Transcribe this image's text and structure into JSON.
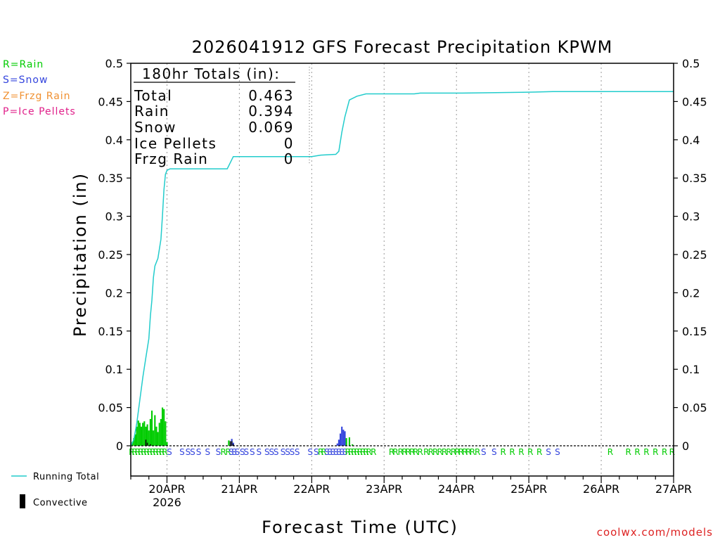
{
  "chart_data": {
    "type": "bar",
    "title": "2026041912 GFS Forecast Precipitation KPWM",
    "xlabel": "Forecast Time (UTC)",
    "ylabel": "Precipitation (in)",
    "ylim": [
      0,
      0.5
    ],
    "xlim_hours": [
      0,
      180
    ],
    "grid": "vertical dotted at day boundaries",
    "y_ticks": [
      "0",
      "0.05",
      "0.1",
      "0.15",
      "0.2",
      "0.25",
      "0.3",
      "0.35",
      "0.4",
      "0.45",
      "0.5"
    ],
    "x_ticks": [
      {
        "hour": 12,
        "label": "20APR",
        "sub": "2026"
      },
      {
        "hour": 36,
        "label": "21APR",
        "sub": ""
      },
      {
        "hour": 60,
        "label": "22APR",
        "sub": ""
      },
      {
        "hour": 84,
        "label": "23APR",
        "sub": ""
      },
      {
        "hour": 108,
        "label": "24APR",
        "sub": ""
      },
      {
        "hour": 132,
        "label": "25APR",
        "sub": ""
      },
      {
        "hour": 156,
        "label": "26APR",
        "sub": ""
      },
      {
        "hour": 180,
        "label": "27APR",
        "sub": ""
      }
    ],
    "legend": {
      "rain": "R=Rain",
      "snow": "S=Snow",
      "frzg_rain": "Z=Frzg Rain",
      "ice_pellets": "P=Ice Pellets",
      "running_total": "Running Total",
      "convective": "Convective"
    },
    "totals": {
      "header": "180hr Totals (in):",
      "rows": [
        {
          "label": "Total",
          "value": "0.463"
        },
        {
          "label": "Rain",
          "value": "0.394"
        },
        {
          "label": "Snow",
          "value": "0.069"
        },
        {
          "label": "Ice Pellets",
          "value": "0"
        },
        {
          "label": "Frzg Rain",
          "value": "0"
        }
      ]
    },
    "colors": {
      "rain": "#00cc00",
      "snow": "#3344dd",
      "frzg_rain": "#f09030",
      "ice_pellets": "#e0208a",
      "running_total": "#22cccc",
      "convective": "#000000"
    },
    "bars": [
      {
        "hour": 0.5,
        "value": 0.005,
        "type": "rain"
      },
      {
        "hour": 1,
        "value": 0.01,
        "type": "rain"
      },
      {
        "hour": 1.5,
        "value": 0.015,
        "type": "rain"
      },
      {
        "hour": 2,
        "value": 0.025,
        "type": "rain"
      },
      {
        "hour": 2.5,
        "value": 0.033,
        "type": "rain"
      },
      {
        "hour": 3,
        "value": 0.03,
        "type": "rain"
      },
      {
        "hour": 3.5,
        "value": 0.025,
        "type": "rain"
      },
      {
        "hour": 4,
        "value": 0.03,
        "type": "rain"
      },
      {
        "hour": 4.5,
        "value": 0.032,
        "type": "rain"
      },
      {
        "hour": 5,
        "value": 0.025,
        "type": "rain"
      },
      {
        "hour": 5.5,
        "value": 0.028,
        "type": "rain"
      },
      {
        "hour": 6,
        "value": 0.02,
        "type": "rain"
      },
      {
        "hour": 6.5,
        "value": 0.035,
        "type": "rain"
      },
      {
        "hour": 7,
        "value": 0.046,
        "type": "rain"
      },
      {
        "hour": 7.5,
        "value": 0.02,
        "type": "rain"
      },
      {
        "hour": 8,
        "value": 0.04,
        "type": "rain"
      },
      {
        "hour": 8.5,
        "value": 0.025,
        "type": "rain"
      },
      {
        "hour": 9,
        "value": 0.018,
        "type": "rain"
      },
      {
        "hour": 9.5,
        "value": 0.03,
        "type": "rain"
      },
      {
        "hour": 10,
        "value": 0.035,
        "type": "rain"
      },
      {
        "hour": 10.5,
        "value": 0.05,
        "type": "rain"
      },
      {
        "hour": 11,
        "value": 0.048,
        "type": "rain"
      },
      {
        "hour": 11.5,
        "value": 0.032,
        "type": "rain"
      },
      {
        "hour": 12,
        "value": 0.005,
        "type": "rain"
      },
      {
        "hour": 32.5,
        "value": 0.007,
        "type": "rain"
      },
      {
        "hour": 33.5,
        "value": 0.009,
        "type": "snow"
      },
      {
        "hour": 34,
        "value": 0.004,
        "type": "snow"
      },
      {
        "hour": 54,
        "value": 0.001,
        "type": "snow"
      },
      {
        "hour": 68.5,
        "value": 0.003,
        "type": "snow"
      },
      {
        "hour": 69,
        "value": 0.008,
        "type": "snow"
      },
      {
        "hour": 69.5,
        "value": 0.016,
        "type": "snow"
      },
      {
        "hour": 70,
        "value": 0.025,
        "type": "snow"
      },
      {
        "hour": 70.5,
        "value": 0.021,
        "type": "snow"
      },
      {
        "hour": 71,
        "value": 0.019,
        "type": "snow"
      },
      {
        "hour": 71.5,
        "value": 0.01,
        "type": "rain"
      },
      {
        "hour": 72.5,
        "value": 0.011,
        "type": "rain"
      },
      {
        "hour": 73.5,
        "value": 0.002,
        "type": "rain"
      }
    ],
    "convective": [
      {
        "hour": 5,
        "value": 0.008
      },
      {
        "hour": 5.5,
        "value": 0.004
      },
      {
        "hour": 6.5,
        "value": 0.002
      },
      {
        "hour": 33,
        "value": 0.006
      },
      {
        "hour": 33.5,
        "value": 0.006
      },
      {
        "hour": 34,
        "value": 0.002
      }
    ],
    "running_total": [
      [
        0,
        0
      ],
      [
        1,
        0.008
      ],
      [
        2,
        0.03
      ],
      [
        3,
        0.06
      ],
      [
        4,
        0.09
      ],
      [
        5,
        0.115
      ],
      [
        6,
        0.14
      ],
      [
        6.5,
        0.17
      ],
      [
        7,
        0.19
      ],
      [
        7.5,
        0.22
      ],
      [
        8,
        0.235
      ],
      [
        9,
        0.245
      ],
      [
        10,
        0.27
      ],
      [
        10.5,
        0.3
      ],
      [
        11,
        0.335
      ],
      [
        11.5,
        0.355
      ],
      [
        12,
        0.36
      ],
      [
        13,
        0.362
      ],
      [
        20,
        0.362
      ],
      [
        32,
        0.362
      ],
      [
        34,
        0.378
      ],
      [
        54,
        0.378
      ],
      [
        60,
        0.378
      ],
      [
        63,
        0.38
      ],
      [
        68,
        0.381
      ],
      [
        69,
        0.385
      ],
      [
        70,
        0.41
      ],
      [
        71,
        0.43
      ],
      [
        72.5,
        0.452
      ],
      [
        75,
        0.457
      ],
      [
        78,
        0.46
      ],
      [
        90,
        0.46
      ],
      [
        94,
        0.46
      ],
      [
        96,
        0.461
      ],
      [
        110,
        0.461
      ],
      [
        130,
        0.462
      ],
      [
        140,
        0.463
      ],
      [
        180,
        0.463
      ]
    ],
    "type_labels": [
      {
        "hour": 0.3,
        "text": "R",
        "type": "rain"
      },
      {
        "hour": 1.3,
        "text": "R",
        "type": "rain"
      },
      {
        "hour": 2.3,
        "text": "R",
        "type": "rain"
      },
      {
        "hour": 3.3,
        "text": "R",
        "type": "rain"
      },
      {
        "hour": 4.3,
        "text": "R",
        "type": "rain"
      },
      {
        "hour": 5.3,
        "text": "R",
        "type": "rain"
      },
      {
        "hour": 6.3,
        "text": "R",
        "type": "rain"
      },
      {
        "hour": 7.3,
        "text": "R",
        "type": "rain"
      },
      {
        "hour": 8.3,
        "text": "R",
        "type": "rain"
      },
      {
        "hour": 9.3,
        "text": "R",
        "type": "rain"
      },
      {
        "hour": 10.3,
        "text": "R",
        "type": "rain"
      },
      {
        "hour": 11.3,
        "text": "R",
        "type": "rain"
      },
      {
        "hour": 12.8,
        "text": "S",
        "type": "snow"
      },
      {
        "hour": 17,
        "text": "S",
        "type": "snow"
      },
      {
        "hour": 19,
        "text": "S",
        "type": "snow"
      },
      {
        "hour": 20.5,
        "text": "S",
        "type": "snow"
      },
      {
        "hour": 22.5,
        "text": "S",
        "type": "snow"
      },
      {
        "hour": 25.5,
        "text": "S",
        "type": "snow"
      },
      {
        "hour": 29,
        "text": "S",
        "type": "snow"
      },
      {
        "hour": 30.7,
        "text": "R",
        "type": "rain"
      },
      {
        "hour": 32.3,
        "text": "R",
        "type": "rain"
      },
      {
        "hour": 33.3,
        "text": "S",
        "type": "snow"
      },
      {
        "hour": 34.3,
        "text": "S",
        "type": "snow"
      },
      {
        "hour": 35.3,
        "text": "S",
        "type": "snow"
      },
      {
        "hour": 37,
        "text": "S",
        "type": "snow"
      },
      {
        "hour": 38.3,
        "text": "S",
        "type": "snow"
      },
      {
        "hour": 40.3,
        "text": "S",
        "type": "snow"
      },
      {
        "hour": 42.5,
        "text": "S",
        "type": "snow"
      },
      {
        "hour": 45.2,
        "text": "S",
        "type": "snow"
      },
      {
        "hour": 46.7,
        "text": "S",
        "type": "snow"
      },
      {
        "hour": 48.2,
        "text": "S",
        "type": "snow"
      },
      {
        "hour": 50.5,
        "text": "S",
        "type": "snow"
      },
      {
        "hour": 52,
        "text": "S",
        "type": "snow"
      },
      {
        "hour": 53.5,
        "text": "S",
        "type": "snow"
      },
      {
        "hour": 55.2,
        "text": "S",
        "type": "snow"
      },
      {
        "hour": 59.5,
        "text": "S",
        "type": "snow"
      },
      {
        "hour": 61.5,
        "text": "S",
        "type": "snow"
      },
      {
        "hour": 63,
        "text": "R",
        "type": "rain"
      },
      {
        "hour": 64,
        "text": "R",
        "type": "rain"
      },
      {
        "hour": 65,
        "text": "S",
        "type": "snow"
      },
      {
        "hour": 66,
        "text": "S",
        "type": "snow"
      },
      {
        "hour": 67,
        "text": "S",
        "type": "snow"
      },
      {
        "hour": 68,
        "text": "S",
        "type": "snow"
      },
      {
        "hour": 69,
        "text": "S",
        "type": "snow"
      },
      {
        "hour": 70,
        "text": "S",
        "type": "snow"
      },
      {
        "hour": 71,
        "text": "S",
        "type": "snow"
      },
      {
        "hour": 72,
        "text": "R",
        "type": "rain"
      },
      {
        "hour": 73,
        "text": "R",
        "type": "rain"
      },
      {
        "hour": 74,
        "text": "R",
        "type": "rain"
      },
      {
        "hour": 75,
        "text": "R",
        "type": "rain"
      },
      {
        "hour": 76,
        "text": "R",
        "type": "rain"
      },
      {
        "hour": 77,
        "text": "R",
        "type": "rain"
      },
      {
        "hour": 78,
        "text": "R",
        "type": "rain"
      },
      {
        "hour": 79,
        "text": "R",
        "type": "rain"
      },
      {
        "hour": 80.5,
        "text": "R",
        "type": "rain"
      },
      {
        "hour": 86.5,
        "text": "R",
        "type": "rain"
      },
      {
        "hour": 87.8,
        "text": "R",
        "type": "rain"
      },
      {
        "hour": 89.5,
        "text": "R",
        "type": "rain"
      },
      {
        "hour": 90.8,
        "text": "R",
        "type": "rain"
      },
      {
        "hour": 92,
        "text": "R",
        "type": "rain"
      },
      {
        "hour": 93.3,
        "text": "R",
        "type": "rain"
      },
      {
        "hour": 94.5,
        "text": "R",
        "type": "rain"
      },
      {
        "hour": 96,
        "text": "R",
        "type": "rain"
      },
      {
        "hour": 98,
        "text": "R",
        "type": "rain"
      },
      {
        "hour": 99.5,
        "text": "R",
        "type": "rain"
      },
      {
        "hour": 101,
        "text": "R",
        "type": "rain"
      },
      {
        "hour": 102.5,
        "text": "R",
        "type": "rain"
      },
      {
        "hour": 104,
        "text": "R",
        "type": "rain"
      },
      {
        "hour": 105.5,
        "text": "R",
        "type": "rain"
      },
      {
        "hour": 107,
        "text": "R",
        "type": "rain"
      },
      {
        "hour": 108.3,
        "text": "R",
        "type": "rain"
      },
      {
        "hour": 109.5,
        "text": "R",
        "type": "rain"
      },
      {
        "hour": 110.8,
        "text": "R",
        "type": "rain"
      },
      {
        "hour": 112,
        "text": "R",
        "type": "rain"
      },
      {
        "hour": 113.3,
        "text": "R",
        "type": "rain"
      },
      {
        "hour": 115,
        "text": "R",
        "type": "rain"
      },
      {
        "hour": 117,
        "text": "S",
        "type": "snow"
      },
      {
        "hour": 120.5,
        "text": "S",
        "type": "snow"
      },
      {
        "hour": 123.5,
        "text": "R",
        "type": "rain"
      },
      {
        "hour": 126.5,
        "text": "R",
        "type": "rain"
      },
      {
        "hour": 129.5,
        "text": "R",
        "type": "rain"
      },
      {
        "hour": 132.5,
        "text": "R",
        "type": "rain"
      },
      {
        "hour": 135.5,
        "text": "R",
        "type": "rain"
      },
      {
        "hour": 138.5,
        "text": "S",
        "type": "snow"
      },
      {
        "hour": 141.5,
        "text": "S",
        "type": "snow"
      },
      {
        "hour": 159,
        "text": "R",
        "type": "rain"
      },
      {
        "hour": 165,
        "text": "R",
        "type": "rain"
      },
      {
        "hour": 168,
        "text": "R",
        "type": "rain"
      },
      {
        "hour": 171,
        "text": "R",
        "type": "rain"
      },
      {
        "hour": 174,
        "text": "R",
        "type": "rain"
      },
      {
        "hour": 177,
        "text": "R",
        "type": "rain"
      },
      {
        "hour": 179.5,
        "text": "R",
        "type": "rain"
      }
    ]
  },
  "footer": {
    "credit": "coolwx.com/models"
  }
}
